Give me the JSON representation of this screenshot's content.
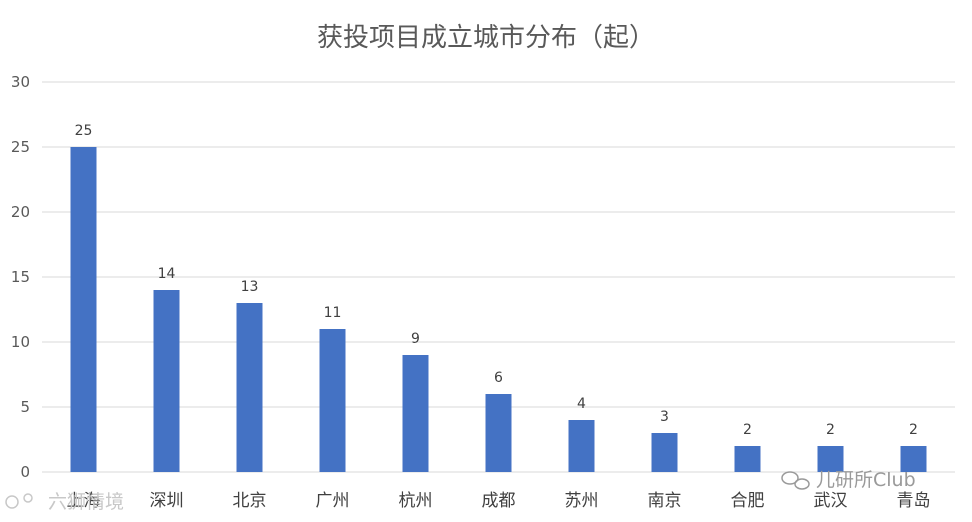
{
  "chart_data": {
    "type": "bar",
    "title": "获投项目成立城市分布（起）",
    "categories": [
      "上海",
      "深圳",
      "北京",
      "广州",
      "杭州",
      "成都",
      "苏州",
      "南京",
      "合肥",
      "武汉",
      "青岛"
    ],
    "values": [
      25,
      14,
      13,
      11,
      9,
      6,
      4,
      3,
      2,
      2,
      2
    ],
    "ylim": [
      0,
      30
    ],
    "yticks": [
      0,
      5,
      10,
      15,
      20,
      25,
      30
    ],
    "xlabel": "",
    "ylabel": "",
    "grid": true,
    "legend": "none",
    "bar_color": "#4472C4",
    "gridline_color": "#d9d9d9"
  },
  "watermarks": {
    "left": "六狮情境",
    "right": "儿研所Club"
  }
}
